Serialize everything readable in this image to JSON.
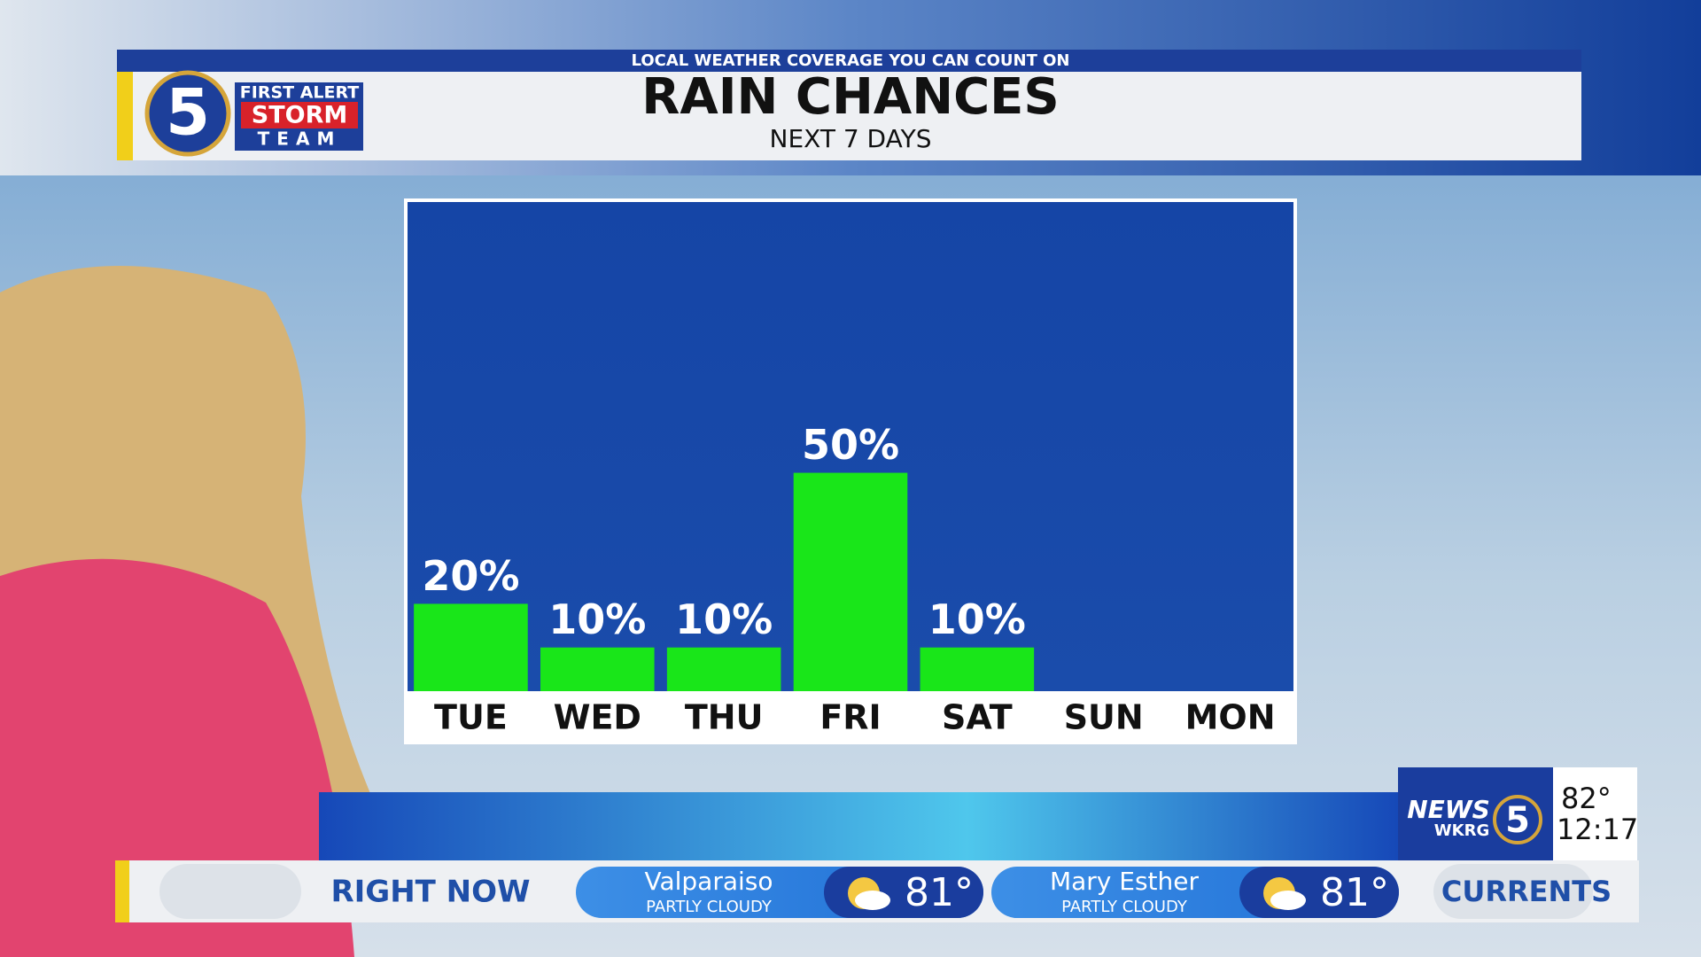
{
  "banner": {
    "tagline": "LOCAL WEATHER COVERAGE YOU CAN COUNT ON",
    "logo": {
      "number": "5",
      "line1": "FIRST ALERT",
      "line2": "STORM",
      "line3": "TEAM"
    }
  },
  "chart_data": {
    "type": "bar",
    "title": "RAIN CHANCES",
    "subtitle": "NEXT 7 DAYS",
    "categories": [
      "TUE",
      "WED",
      "THU",
      "FRI",
      "SAT",
      "SUN",
      "MON"
    ],
    "values": [
      20,
      10,
      10,
      50,
      10,
      null,
      null
    ],
    "value_labels": [
      "20%",
      "10%",
      "10%",
      "50%",
      "10%",
      null,
      null
    ],
    "color": "#19e619",
    "ylim": [
      0,
      112
    ]
  },
  "station": {
    "name": "NEWS",
    "number": "5",
    "call": "WKRG",
    "temp": "82°",
    "time": "12:17"
  },
  "ticker": {
    "label": "RIGHT NOW",
    "items": [
      {
        "city": "Valparaiso",
        "condition": "PARTLY CLOUDY",
        "temp": "81°"
      },
      {
        "city": "Mary Esther",
        "condition": "PARTLY CLOUDY",
        "temp": "81°"
      }
    ],
    "next": "CURRENTS"
  }
}
